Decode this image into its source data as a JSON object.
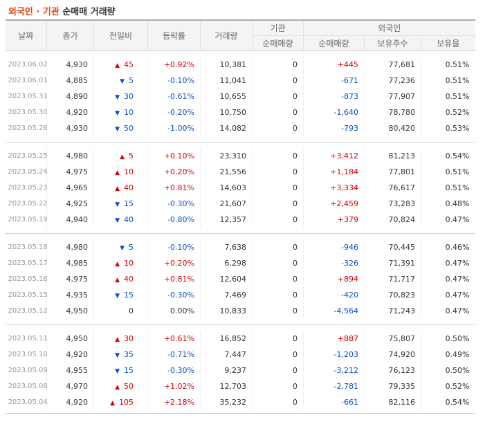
{
  "title": {
    "part1": "외국인 · 기관",
    "part2": "순매매 거래량"
  },
  "headers": {
    "date": "날짜",
    "close": "종가",
    "change": "전일비",
    "rate": "등락률",
    "volume": "거래량",
    "inst": "기관",
    "foreign": "외국인",
    "inst_net": "순매매량",
    "foreign_net": "순매매량",
    "foreign_hold": "보유주수",
    "foreign_ratio": "보유율"
  },
  "groups": [
    [
      {
        "date": "2023.06.02",
        "close": "4,930",
        "dir": "up",
        "change": "45",
        "rate": "+0.92%",
        "volume": "10,381",
        "inst": "0",
        "foreign": "+445",
        "hold": "77,681",
        "ratio": "0.51%"
      },
      {
        "date": "2023.06.01",
        "close": "4,885",
        "dir": "dn",
        "change": "5",
        "rate": "-0.10%",
        "volume": "11,041",
        "inst": "0",
        "foreign": "-671",
        "hold": "77,236",
        "ratio": "0.51%"
      },
      {
        "date": "2023.05.31",
        "close": "4,890",
        "dir": "dn",
        "change": "30",
        "rate": "-0.61%",
        "volume": "10,655",
        "inst": "0",
        "foreign": "-873",
        "hold": "77,907",
        "ratio": "0.51%"
      },
      {
        "date": "2023.05.30",
        "close": "4,920",
        "dir": "dn",
        "change": "10",
        "rate": "-0.20%",
        "volume": "10,750",
        "inst": "0",
        "foreign": "-1,640",
        "hold": "78,780",
        "ratio": "0.52%"
      },
      {
        "date": "2023.05.26",
        "close": "4,930",
        "dir": "dn",
        "change": "50",
        "rate": "-1.00%",
        "volume": "14,082",
        "inst": "0",
        "foreign": "-793",
        "hold": "80,420",
        "ratio": "0.53%"
      }
    ],
    [
      {
        "date": "2023.05.25",
        "close": "4,980",
        "dir": "up",
        "change": "5",
        "rate": "+0.10%",
        "volume": "23,310",
        "inst": "0",
        "foreign": "+3,412",
        "hold": "81,213",
        "ratio": "0.54%"
      },
      {
        "date": "2023.05.24",
        "close": "4,975",
        "dir": "up",
        "change": "10",
        "rate": "+0.20%",
        "volume": "21,556",
        "inst": "0",
        "foreign": "+1,184",
        "hold": "77,801",
        "ratio": "0.51%"
      },
      {
        "date": "2023.05.23",
        "close": "4,965",
        "dir": "up",
        "change": "40",
        "rate": "+0.81%",
        "volume": "14,603",
        "inst": "0",
        "foreign": "+3,334",
        "hold": "76,617",
        "ratio": "0.51%"
      },
      {
        "date": "2023.05.22",
        "close": "4,925",
        "dir": "dn",
        "change": "15",
        "rate": "-0.30%",
        "volume": "21,607",
        "inst": "0",
        "foreign": "+2,459",
        "hold": "73,283",
        "ratio": "0.48%"
      },
      {
        "date": "2023.05.19",
        "close": "4,940",
        "dir": "dn",
        "change": "40",
        "rate": "-0.80%",
        "volume": "12,357",
        "inst": "0",
        "foreign": "+379",
        "hold": "70,824",
        "ratio": "0.47%"
      }
    ],
    [
      {
        "date": "2023.05.18",
        "close": "4,980",
        "dir": "dn",
        "change": "5",
        "rate": "-0.10%",
        "volume": "7,638",
        "inst": "0",
        "foreign": "-946",
        "hold": "70,445",
        "ratio": "0.46%"
      },
      {
        "date": "2023.05.17",
        "close": "4,985",
        "dir": "up",
        "change": "10",
        "rate": "+0.20%",
        "volume": "6,298",
        "inst": "0",
        "foreign": "-326",
        "hold": "71,391",
        "ratio": "0.47%"
      },
      {
        "date": "2023.05.16",
        "close": "4,975",
        "dir": "up",
        "change": "40",
        "rate": "+0.81%",
        "volume": "12,604",
        "inst": "0",
        "foreign": "+894",
        "hold": "71,717",
        "ratio": "0.47%"
      },
      {
        "date": "2023.05.15",
        "close": "4,935",
        "dir": "dn",
        "change": "15",
        "rate": "-0.30%",
        "volume": "7,469",
        "inst": "0",
        "foreign": "-420",
        "hold": "70,823",
        "ratio": "0.47%"
      },
      {
        "date": "2023.05.12",
        "close": "4,950",
        "dir": "eq",
        "change": "0",
        "rate": "0.00%",
        "volume": "10,833",
        "inst": "0",
        "foreign": "-4,564",
        "hold": "71,243",
        "ratio": "0.47%"
      }
    ],
    [
      {
        "date": "2023.05.11",
        "close": "4,950",
        "dir": "up",
        "change": "30",
        "rate": "+0.61%",
        "volume": "16,852",
        "inst": "0",
        "foreign": "+887",
        "hold": "75,807",
        "ratio": "0.50%"
      },
      {
        "date": "2023.05.10",
        "close": "4,920",
        "dir": "dn",
        "change": "35",
        "rate": "-0.71%",
        "volume": "7,447",
        "inst": "0",
        "foreign": "-1,203",
        "hold": "74,920",
        "ratio": "0.49%"
      },
      {
        "date": "2023.05.09",
        "close": "4,955",
        "dir": "dn",
        "change": "15",
        "rate": "-0.30%",
        "volume": "9,237",
        "inst": "0",
        "foreign": "-3,212",
        "hold": "76,123",
        "ratio": "0.50%"
      },
      {
        "date": "2023.05.08",
        "close": "4,970",
        "dir": "up",
        "change": "50",
        "rate": "+1.02%",
        "volume": "12,703",
        "inst": "0",
        "foreign": "-2,781",
        "hold": "79,335",
        "ratio": "0.52%"
      },
      {
        "date": "2023.05.04",
        "close": "4,920",
        "dir": "up",
        "change": "105",
        "rate": "+2.18%",
        "volume": "35,232",
        "inst": "0",
        "foreign": "-661",
        "hold": "82,116",
        "ratio": "0.54%"
      }
    ]
  ],
  "colors": {
    "up": "#d60000",
    "down": "#0c4fc8",
    "title_accent": "#e64110"
  }
}
